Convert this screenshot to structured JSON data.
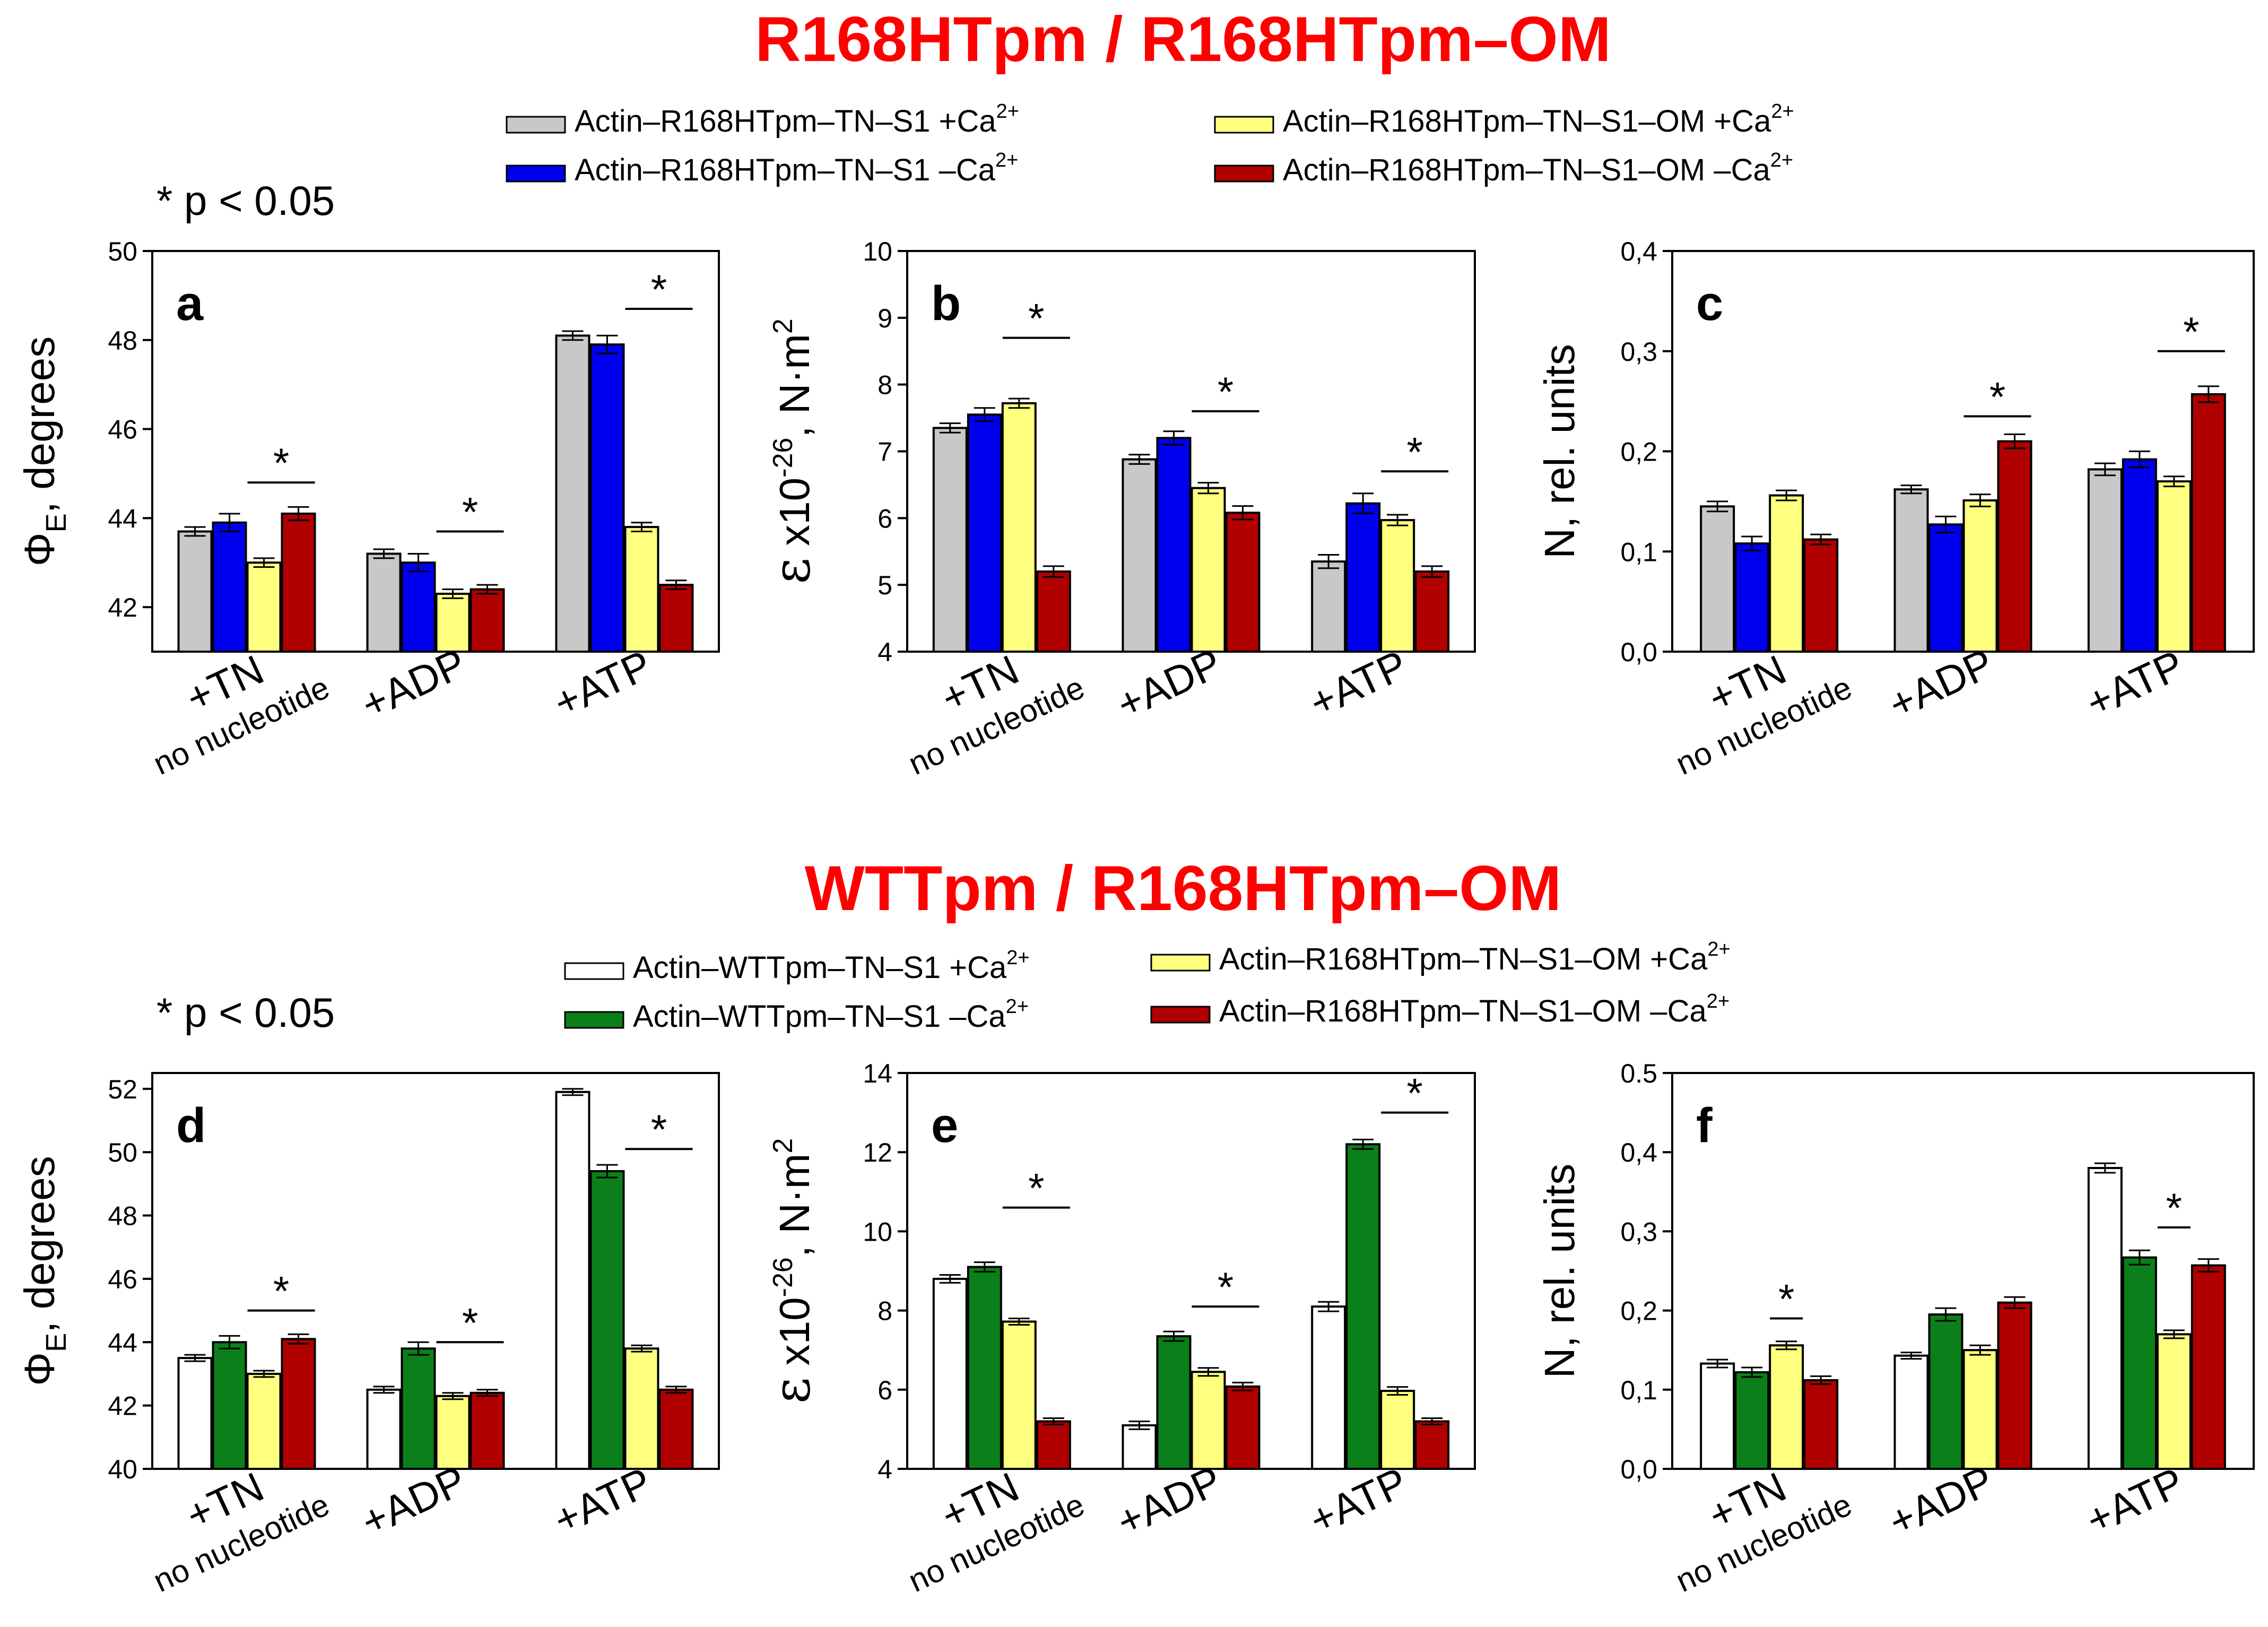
{
  "colors": {
    "gray": "#c8c8c8",
    "blue": "#0000ee",
    "yellow": "#ffff80",
    "darkred": "#b00000",
    "white": "#ffffff",
    "green": "#0a7f1a",
    "title_red": "#ff0000"
  },
  "sections": [
    {
      "title": "R168HTpm / R168HTpm–OM",
      "pvalue": "* p < 0.05",
      "legend": [
        {
          "label": "Actin–R168HTpm–TN–S1 +Ca",
          "sup": "2+",
          "color": "#c8c8c8"
        },
        {
          "label": "Actin–R168HTpm–TN–S1 –Ca",
          "sup": "2+",
          "color": "#0000ee"
        },
        {
          "label": "Actin–R168HTpm–TN–S1–OM +Ca",
          "sup": "2+",
          "color": "#ffff80"
        },
        {
          "label": "Actin–R168HTpm–TN–S1–OM –Ca",
          "sup": "2+",
          "color": "#b00000"
        }
      ]
    },
    {
      "title": "WTTpm / R168HTpm–OM",
      "pvalue": "* p < 0.05",
      "legend": [
        {
          "label": "Actin–WTTpm–TN–S1 +Ca",
          "sup": "2+",
          "color": "#ffffff"
        },
        {
          "label": "Actin–WTTpm–TN–S1 –Ca",
          "sup": "2+",
          "color": "#0a7f1a"
        },
        {
          "label": "Actin–R168HTpm–TN–S1–OM +Ca",
          "sup": "2+",
          "color": "#ffff80"
        },
        {
          "label": "Actin–R168HTpm–TN–S1–OM –Ca",
          "sup": "2+",
          "color": "#b00000"
        }
      ]
    }
  ],
  "chart_data": [
    {
      "panel": "a",
      "type": "bar",
      "ylabel": "ΦE, degrees",
      "ylabel_main": "Φ",
      "ylabel_sub": "E",
      "ylabel_rest": ", degrees",
      "ylim": [
        41,
        50
      ],
      "yticks": [
        "42",
        "44",
        "46",
        "48",
        "50"
      ],
      "ytick_values": [
        42,
        44,
        46,
        48,
        50
      ],
      "categories": [
        [
          "+TN",
          "no nucleotide"
        ],
        [
          "+ADP"
        ],
        [
          "+ATP"
        ]
      ],
      "colors": [
        "#c8c8c8",
        "#0000ee",
        "#ffff80",
        "#b00000"
      ],
      "series": [
        {
          "name": "Actin–R168HTpm–TN–S1 +Ca2+",
          "values": [
            43.7,
            43.2,
            48.1
          ],
          "errors": [
            0.1,
            0.1,
            0.1
          ]
        },
        {
          "name": "Actin–R168HTpm–TN–S1 –Ca2+",
          "values": [
            43.9,
            43.0,
            47.9
          ],
          "errors": [
            0.2,
            0.2,
            0.2
          ]
        },
        {
          "name": "Actin–R168HTpm–TN–S1–OM +Ca2+",
          "values": [
            43.0,
            42.3,
            43.8
          ],
          "errors": [
            0.1,
            0.1,
            0.1
          ]
        },
        {
          "name": "Actin–R168HTpm–TN–S1–OM –Ca2+",
          "values": [
            44.1,
            42.4,
            42.5
          ],
          "errors": [
            0.15,
            0.1,
            0.1
          ]
        }
      ],
      "significance": [
        {
          "category": 0,
          "from": 2,
          "to": 3,
          "y": 44.8,
          "label": "*"
        },
        {
          "category": 1,
          "from": 2,
          "to": 3,
          "y": 43.7,
          "label": "*"
        },
        {
          "category": 2,
          "from": 2,
          "to": 3,
          "y": 48.7,
          "label": "*"
        }
      ]
    },
    {
      "panel": "b",
      "type": "bar",
      "ylabel": "ε x10-26, N·m2",
      "ylabel_main": "ε",
      "ylabel_rest": " x10",
      "ylabel_sup1": "-26",
      "ylabel_rest2": ", N·m",
      "ylabel_sup2": "2",
      "ylim": [
        4,
        10
      ],
      "yticks": [
        "4",
        "5",
        "6",
        "7",
        "8",
        "9",
        "10"
      ],
      "ytick_values": [
        4,
        5,
        6,
        7,
        8,
        9,
        10
      ],
      "categories": [
        [
          "+TN",
          "no nucleotide"
        ],
        [
          "+ADP"
        ],
        [
          "+ATP"
        ]
      ],
      "colors": [
        "#c8c8c8",
        "#0000ee",
        "#ffff80",
        "#b00000"
      ],
      "series": [
        {
          "name": "Actin–R168HTpm–TN–S1 +Ca2+",
          "values": [
            7.35,
            6.88,
            5.35
          ],
          "errors": [
            0.07,
            0.07,
            0.1
          ]
        },
        {
          "name": "Actin–R168HTpm–TN–S1 –Ca2+",
          "values": [
            7.55,
            7.2,
            6.22
          ],
          "errors": [
            0.1,
            0.1,
            0.15
          ]
        },
        {
          "name": "Actin–R168HTpm–TN–S1–OM +Ca2+",
          "values": [
            7.72,
            6.45,
            5.97
          ],
          "errors": [
            0.07,
            0.08,
            0.08
          ]
        },
        {
          "name": "Actin–R168HTpm–TN–S1–OM –Ca2+",
          "values": [
            5.2,
            6.08,
            5.2
          ],
          "errors": [
            0.08,
            0.1,
            0.08
          ]
        }
      ],
      "significance": [
        {
          "category": 0,
          "from": 2,
          "to": 3,
          "y": 8.7,
          "label": "*"
        },
        {
          "category": 1,
          "from": 2,
          "to": 3,
          "y": 7.6,
          "label": "*"
        },
        {
          "category": 2,
          "from": 2,
          "to": 3,
          "y": 6.7,
          "label": "*"
        }
      ]
    },
    {
      "panel": "c",
      "type": "bar",
      "ylabel": "N, rel. units",
      "ylabel_main": "N, rel. units",
      "ylim": [
        0,
        0.4
      ],
      "yticks": [
        "0,0",
        "0,1",
        "0,2",
        "0,3",
        "0,4"
      ],
      "ytick_values": [
        0,
        0.1,
        0.2,
        0.3,
        0.4
      ],
      "categories": [
        [
          "+TN",
          "no nucleotide"
        ],
        [
          "+ADP"
        ],
        [
          "+ATP"
        ]
      ],
      "colors": [
        "#c8c8c8",
        "#0000ee",
        "#ffff80",
        "#b00000"
      ],
      "series": [
        {
          "name": "Actin–R168HTpm–TN–S1 +Ca2+",
          "values": [
            0.145,
            0.162,
            0.182
          ],
          "errors": [
            0.005,
            0.004,
            0.006
          ]
        },
        {
          "name": "Actin–R168HTpm–TN–S1 –Ca2+",
          "values": [
            0.108,
            0.127,
            0.192
          ],
          "errors": [
            0.007,
            0.008,
            0.008
          ]
        },
        {
          "name": "Actin–R168HTpm–TN–S1–OM +Ca2+",
          "values": [
            0.156,
            0.151,
            0.17
          ],
          "errors": [
            0.005,
            0.006,
            0.005
          ]
        },
        {
          "name": "Actin–R168HTpm–TN–S1–OM –Ca2+",
          "values": [
            0.112,
            0.21,
            0.257
          ],
          "errors": [
            0.005,
            0.007,
            0.008
          ]
        }
      ],
      "significance": [
        {
          "category": 1,
          "from": 2,
          "to": 3,
          "y": 0.235,
          "label": "*"
        },
        {
          "category": 2,
          "from": 2,
          "to": 3,
          "y": 0.3,
          "label": "*"
        }
      ]
    },
    {
      "panel": "d",
      "type": "bar",
      "ylabel": "ΦE, degrees",
      "ylabel_main": "Φ",
      "ylabel_sub": "E",
      "ylabel_rest": ", degrees",
      "ylim": [
        40,
        52.5
      ],
      "yticks": [
        "40",
        "42",
        "44",
        "46",
        "48",
        "50",
        "52"
      ],
      "ytick_values": [
        40,
        42,
        44,
        46,
        48,
        50,
        52
      ],
      "categories": [
        [
          "+TN",
          "no nucleotide"
        ],
        [
          "+ADP"
        ],
        [
          "+ATP"
        ]
      ],
      "colors": [
        "#ffffff",
        "#0a7f1a",
        "#ffff80",
        "#b00000"
      ],
      "series": [
        {
          "name": "Actin–WTTpm–TN–S1 +Ca2+",
          "values": [
            43.5,
            42.5,
            51.9
          ],
          "errors": [
            0.1,
            0.1,
            0.1
          ]
        },
        {
          "name": "Actin–WTTpm–TN–S1 –Ca2+",
          "values": [
            44.0,
            43.8,
            49.4
          ],
          "errors": [
            0.2,
            0.2,
            0.2
          ]
        },
        {
          "name": "Actin–R168HTpm–TN–S1–OM +Ca2+",
          "values": [
            43.0,
            42.3,
            43.8
          ],
          "errors": [
            0.1,
            0.1,
            0.1
          ]
        },
        {
          "name": "Actin–R168HTpm–TN–S1–OM –Ca2+",
          "values": [
            44.1,
            42.4,
            42.5
          ],
          "errors": [
            0.15,
            0.1,
            0.1
          ]
        }
      ],
      "significance": [
        {
          "category": 0,
          "from": 2,
          "to": 3,
          "y": 45.0,
          "label": "*"
        },
        {
          "category": 1,
          "from": 2,
          "to": 3,
          "y": 44.0,
          "label": "*"
        },
        {
          "category": 2,
          "from": 2,
          "to": 3,
          "y": 50.1,
          "label": "*"
        }
      ]
    },
    {
      "panel": "e",
      "type": "bar",
      "ylabel": "ε x10-26, N·m2",
      "ylabel_main": "ε",
      "ylabel_rest": " x10",
      "ylabel_sup1": "-26",
      "ylabel_rest2": ", N·m",
      "ylabel_sup2": "2",
      "ylim": [
        4,
        14
      ],
      "yticks": [
        "4",
        "6",
        "8",
        "10",
        "12",
        "14"
      ],
      "ytick_values": [
        4,
        6,
        8,
        10,
        12,
        14
      ],
      "categories": [
        [
          "+TN",
          "no nucleotide"
        ],
        [
          "+ADP"
        ],
        [
          "+ATP"
        ]
      ],
      "colors": [
        "#ffffff",
        "#0a7f1a",
        "#ffff80",
        "#b00000"
      ],
      "series": [
        {
          "name": "Actin–WTTpm–TN–S1 +Ca2+",
          "values": [
            8.8,
            5.1,
            8.1
          ],
          "errors": [
            0.1,
            0.1,
            0.12
          ]
        },
        {
          "name": "Actin–WTTpm–TN–S1 –Ca2+",
          "values": [
            9.1,
            7.35,
            12.2
          ],
          "errors": [
            0.12,
            0.12,
            0.12
          ]
        },
        {
          "name": "Actin–R168HTpm–TN–S1–OM +Ca2+",
          "values": [
            7.72,
            6.45,
            5.97
          ],
          "errors": [
            0.08,
            0.1,
            0.1
          ]
        },
        {
          "name": "Actin–R168HTpm–TN–S1–OM –Ca2+",
          "values": [
            5.2,
            6.08,
            5.2
          ],
          "errors": [
            0.08,
            0.1,
            0.08
          ]
        }
      ],
      "significance": [
        {
          "category": 0,
          "from": 2,
          "to": 3,
          "y": 10.6,
          "label": "*"
        },
        {
          "category": 1,
          "from": 2,
          "to": 3,
          "y": 8.1,
          "label": "*"
        },
        {
          "category": 2,
          "from": 2,
          "to": 3,
          "y": 13.0,
          "label": "*"
        }
      ]
    },
    {
      "panel": "f",
      "type": "bar",
      "ylabel": "N, rel. units",
      "ylabel_main": "N, rel. units",
      "ylim": [
        0,
        0.5
      ],
      "yticks": [
        "0,0",
        "0,1",
        "0,2",
        "0,3",
        "0,4",
        "0.5"
      ],
      "ytick_values": [
        0,
        0.1,
        0.2,
        0.3,
        0.4,
        0.5
      ],
      "categories": [
        [
          "+TN",
          "no nucleotide"
        ],
        [
          "+ADP"
        ],
        [
          "+ATP"
        ]
      ],
      "colors": [
        "#ffffff",
        "#0a7f1a",
        "#ffff80",
        "#b00000"
      ],
      "series": [
        {
          "name": "Actin–WTTpm–TN–S1 +Ca2+",
          "values": [
            0.133,
            0.143,
            0.38
          ],
          "errors": [
            0.005,
            0.004,
            0.006
          ]
        },
        {
          "name": "Actin–WTTpm–TN–S1 –Ca2+",
          "values": [
            0.122,
            0.195,
            0.267
          ],
          "errors": [
            0.006,
            0.008,
            0.009
          ]
        },
        {
          "name": "Actin–R168HTpm–TN–S1–OM +Ca2+",
          "values": [
            0.156,
            0.15,
            0.17
          ],
          "errors": [
            0.005,
            0.006,
            0.005
          ]
        },
        {
          "name": "Actin–R168HTpm–TN–S1–OM –Ca2+",
          "values": [
            0.112,
            0.21,
            0.257
          ],
          "errors": [
            0.005,
            0.007,
            0.008
          ]
        }
      ],
      "significance": [
        {
          "category": 0,
          "from": 2,
          "to": 2,
          "y": 0.19,
          "label": "*"
        },
        {
          "category": 2,
          "from": 2,
          "to": 2,
          "y": 0.305,
          "label": "*"
        }
      ]
    }
  ]
}
